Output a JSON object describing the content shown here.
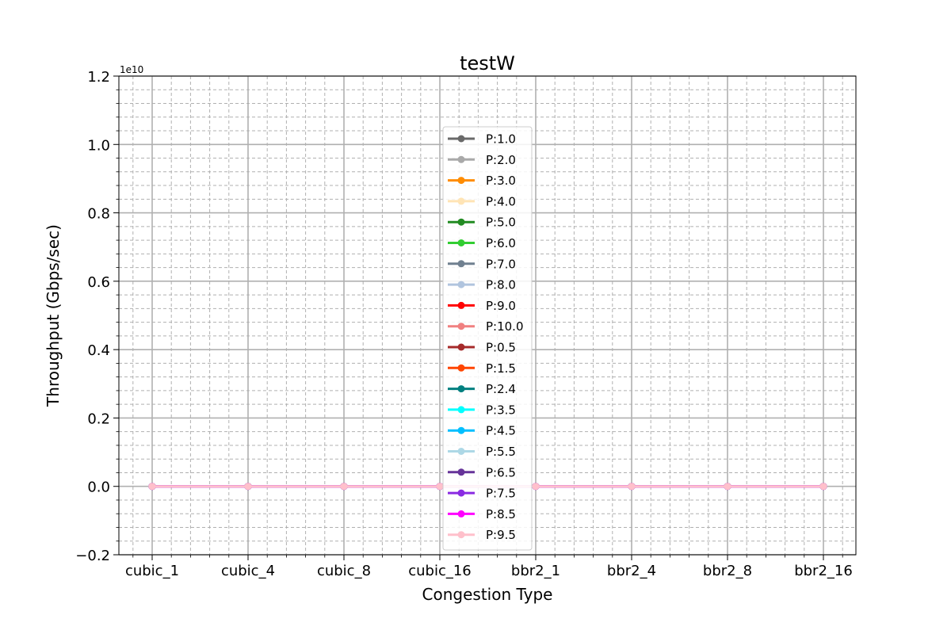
{
  "chart_data": {
    "type": "line",
    "title": "testW",
    "xlabel": "Congestion Type",
    "ylabel": "Throughput (Gbps/sec)",
    "y_offset_label": "1e10",
    "categories": [
      "cubic_1",
      "cubic_4",
      "cubic_8",
      "cubic_16",
      "bbr2_1",
      "bbr2_4",
      "bbr2_8",
      "bbr2_16"
    ],
    "ylim": [
      -0.2,
      1.2
    ],
    "yticks": [
      -0.2,
      0.0,
      0.2,
      0.4,
      0.6,
      0.8,
      1.0,
      1.2
    ],
    "ytick_labels": [
      "−0.2",
      "0.0",
      "0.2",
      "0.4",
      "0.6",
      "0.8",
      "1.0",
      "1.2"
    ],
    "grid": "major and minor",
    "legend_position": "center",
    "series": [
      {
        "name": "P:1.0",
        "color": "#696969",
        "values": [
          0,
          0,
          0,
          0,
          0,
          0,
          0,
          0
        ]
      },
      {
        "name": "P:2.0",
        "color": "#a9a9a9",
        "values": [
          0,
          0,
          0,
          0,
          0,
          0,
          0,
          0
        ]
      },
      {
        "name": "P:3.0",
        "color": "#ff8c00",
        "values": [
          0,
          0,
          0,
          0,
          0,
          0,
          0,
          0
        ]
      },
      {
        "name": "P:4.0",
        "color": "#ffe4b5",
        "values": [
          0,
          0,
          0,
          0,
          0,
          0,
          0,
          0
        ]
      },
      {
        "name": "P:5.0",
        "color": "#228b22",
        "values": [
          0,
          0,
          0,
          0,
          0,
          0,
          0,
          0
        ]
      },
      {
        "name": "P:6.0",
        "color": "#32cd32",
        "values": [
          0,
          0,
          0,
          0,
          0,
          0,
          0,
          0
        ]
      },
      {
        "name": "P:7.0",
        "color": "#708090",
        "values": [
          0,
          0,
          0,
          0,
          0,
          0,
          0,
          0
        ]
      },
      {
        "name": "P:8.0",
        "color": "#b0c4de",
        "values": [
          0,
          0,
          0,
          0,
          0,
          0,
          0,
          0
        ]
      },
      {
        "name": "P:9.0",
        "color": "#ff0000",
        "values": [
          0,
          0,
          0,
          0,
          0,
          0,
          0,
          0
        ]
      },
      {
        "name": "P:10.0",
        "color": "#f08080",
        "values": [
          0,
          0,
          0,
          0,
          0,
          0,
          0,
          0
        ]
      },
      {
        "name": "P:0.5",
        "color": "#a52a2a",
        "values": [
          0,
          0,
          0,
          0,
          0,
          0,
          0,
          0
        ]
      },
      {
        "name": "P:1.5",
        "color": "#ff4500",
        "values": [
          0,
          0,
          0,
          0,
          0,
          0,
          0,
          0
        ]
      },
      {
        "name": "P:2.4",
        "color": "#008080",
        "values": [
          0,
          0,
          0,
          0,
          0,
          0,
          0,
          0
        ]
      },
      {
        "name": "P:3.5",
        "color": "#00ffff",
        "values": [
          0,
          0,
          0,
          0,
          0,
          0,
          0,
          0
        ]
      },
      {
        "name": "P:4.5",
        "color": "#00bfff",
        "values": [
          0,
          0,
          0,
          0,
          0,
          0,
          0,
          0
        ]
      },
      {
        "name": "P:5.5",
        "color": "#add8e6",
        "values": [
          0,
          0,
          0,
          0,
          0,
          0,
          0,
          0
        ]
      },
      {
        "name": "P:6.5",
        "color": "#663399",
        "values": [
          0,
          0,
          0,
          0,
          0,
          0,
          0,
          0
        ]
      },
      {
        "name": "P:7.5",
        "color": "#8a2be2",
        "values": [
          0,
          0,
          0,
          0,
          0,
          0,
          0,
          0
        ]
      },
      {
        "name": "P:8.5",
        "color": "#ff00ff",
        "values": [
          0,
          0,
          0,
          0,
          0,
          0,
          0,
          0
        ]
      },
      {
        "name": "P:9.5",
        "color": "#ffc0cb",
        "values": [
          0,
          0,
          0,
          0,
          0,
          0,
          0,
          0
        ]
      }
    ]
  }
}
